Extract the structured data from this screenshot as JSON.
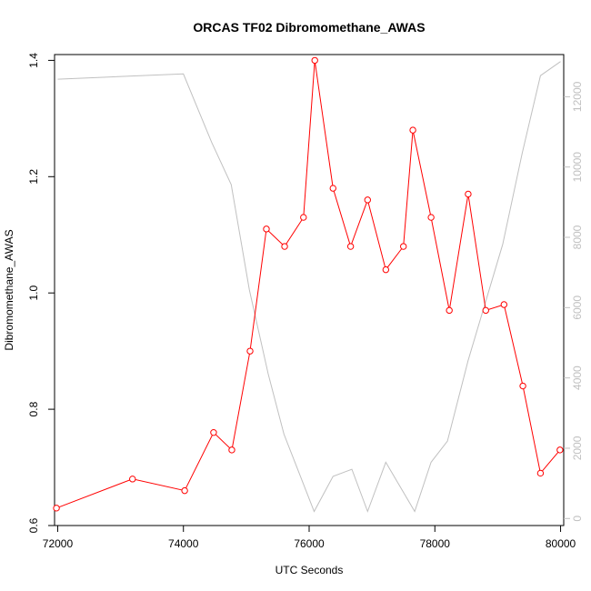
{
  "chart_data": {
    "type": "line",
    "title": "ORCAS TF02 Dibromomethane_AWAS",
    "xlabel": "UTC Seconds",
    "ylabel": "Dibromomethane_AWAS",
    "xlim": [
      71950,
      80050
    ],
    "ylim": [
      0.6,
      1.41
    ],
    "y2lim": [
      -200,
      13200
    ],
    "x_ticks": [
      "72000",
      "74000",
      "76000",
      "78000",
      "80000"
    ],
    "y_ticks": [
      "0.6",
      "0.8",
      "1.0",
      "1.2",
      "1.4"
    ],
    "y2_ticks": [
      "0",
      "2000",
      "4000",
      "6000",
      "8000",
      "10000",
      "12000"
    ],
    "grid": false,
    "series": [
      {
        "color": "#ff0000",
        "axis": "left",
        "markers": true,
        "x": [
          71980,
          73190,
          74020,
          74480,
          74770,
          75060,
          75320,
          75610,
          75910,
          76090,
          76380,
          76660,
          76930,
          77220,
          77500,
          77650,
          77940,
          78230,
          78530,
          78810,
          79100,
          79400,
          79680,
          79990
        ],
        "values": [
          0.63,
          0.68,
          0.66,
          0.76,
          0.73,
          0.9,
          1.11,
          1.08,
          1.13,
          1.4,
          1.18,
          1.08,
          1.16,
          1.04,
          1.08,
          1.28,
          1.13,
          0.97,
          1.17,
          0.97,
          0.98,
          0.84,
          0.69,
          0.73
        ]
      },
      {
        "color": "#c0c0c0",
        "axis": "right",
        "markers": false,
        "x": [
          72000,
          74000,
          74450,
          74760,
          75050,
          75350,
          75600,
          76080,
          76380,
          76680,
          76930,
          77220,
          77680,
          77940,
          78200,
          78530,
          79080,
          79390,
          79680,
          80000
        ],
        "values": [
          12500,
          12650,
          10700,
          9500,
          6500,
          4100,
          2400,
          200,
          1200,
          1400,
          200,
          1600,
          200,
          1600,
          2200,
          4500,
          7800,
          10400,
          12600,
          13000
        ]
      }
    ]
  }
}
